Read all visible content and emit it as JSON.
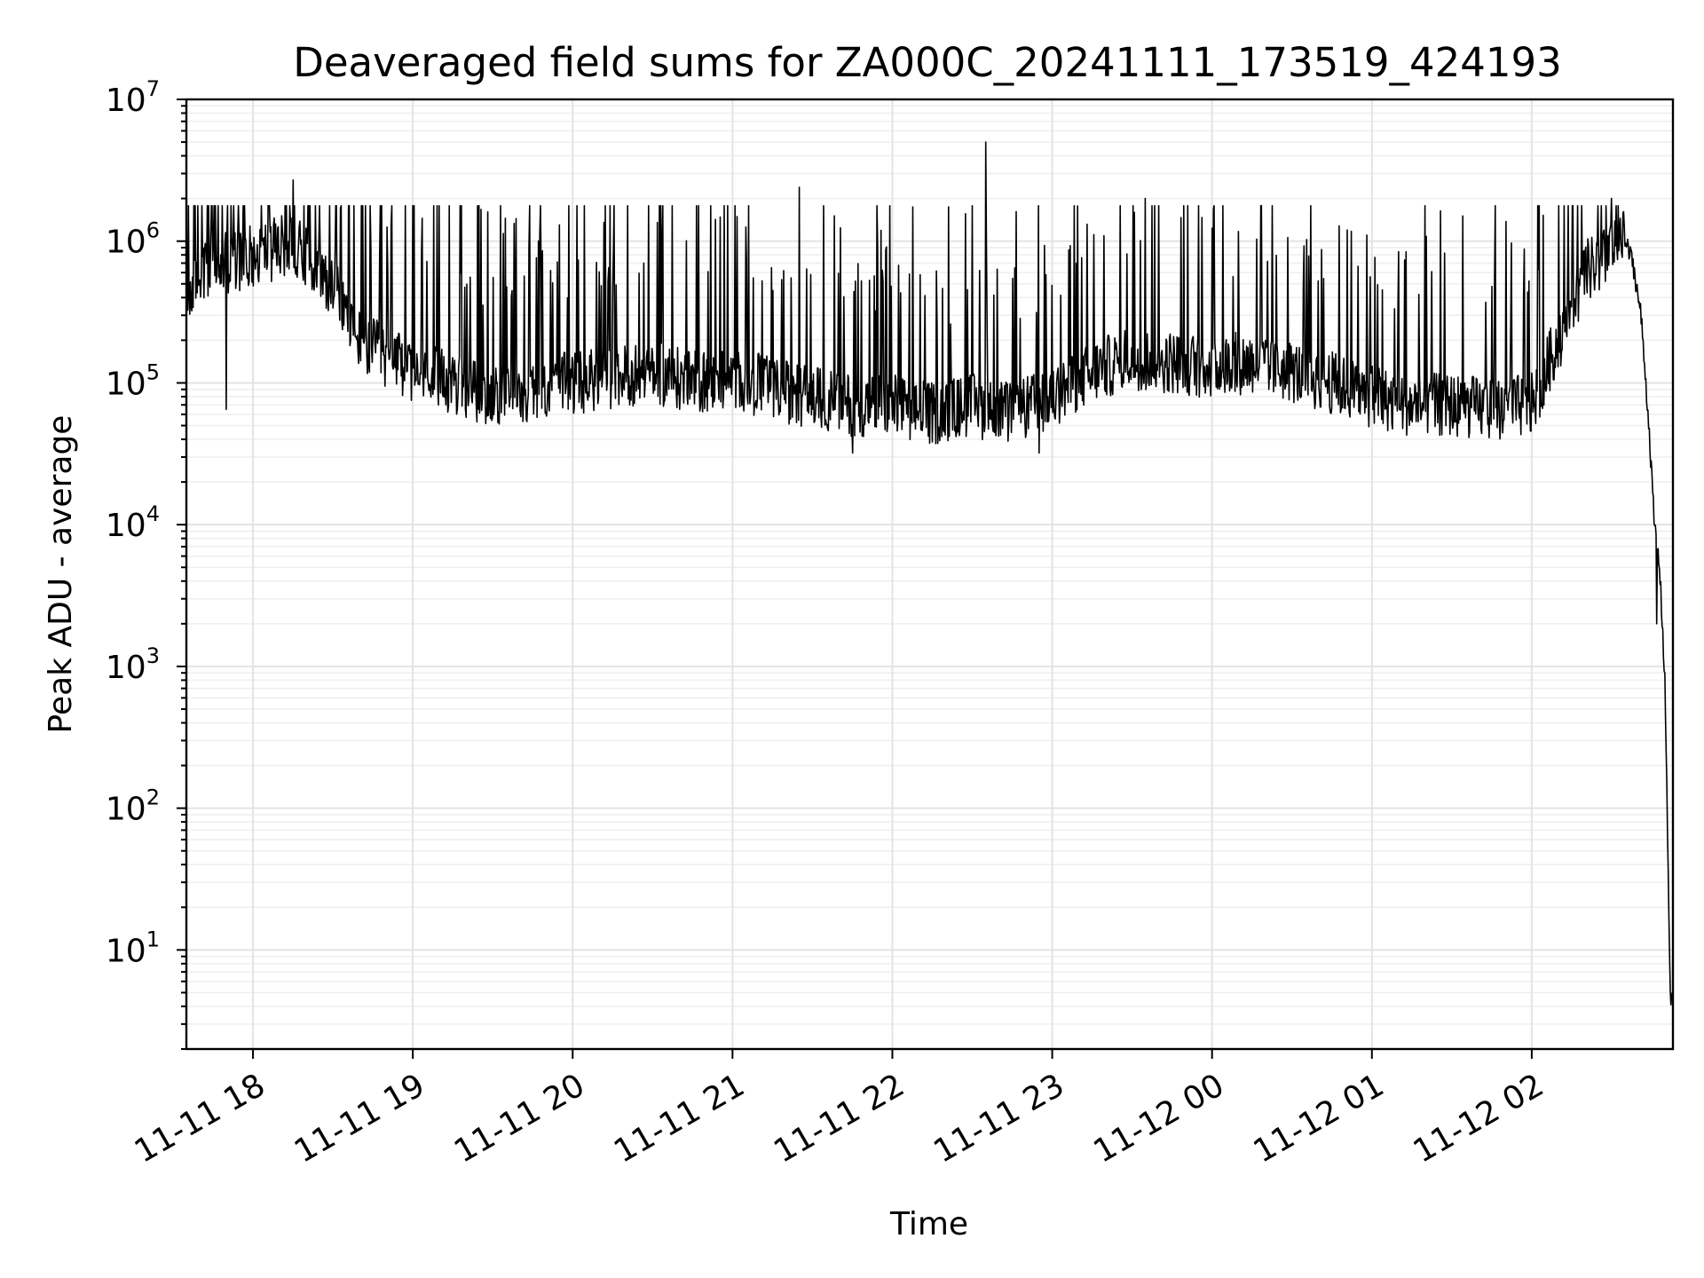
{
  "chart_data": {
    "type": "line",
    "title": "Deaveraged field sums for ZA000C_20241111_173519_424193",
    "xlabel": "Time",
    "ylabel": "Peak ADU - average",
    "yscale": "log",
    "ylim": [
      2,
      10000000
    ],
    "xlim": [
      "2024-11-11 17:35",
      "2024-11-12 02:53"
    ],
    "xtick_labels": [
      "11-11 18",
      "11-11 19",
      "11-11 20",
      "11-11 21",
      "11-11 22",
      "11-11 23",
      "11-12 00",
      "11-12 01",
      "11-12 02"
    ],
    "xtick_times": [
      "2024-11-11 18:00",
      "2024-11-11 19:00",
      "2024-11-11 20:00",
      "2024-11-11 21:00",
      "2024-11-11 22:00",
      "2024-11-11 23:00",
      "2024-11-12 00:00",
      "2024-11-12 01:00",
      "2024-11-12 02:00"
    ],
    "ytick_exponents": [
      1,
      2,
      3,
      4,
      5,
      6,
      7
    ],
    "grid": true,
    "legend": "none",
    "line_color": "#000000",
    "series": [
      {
        "x": [
          "2024-11-11 17:35",
          "2024-11-11 17:40",
          "2024-11-11 17:50",
          "2024-11-11 18:00",
          "2024-11-11 18:10",
          "2024-11-11 18:15",
          "2024-11-11 18:20",
          "2024-11-11 18:30",
          "2024-11-11 18:40",
          "2024-11-11 18:50",
          "2024-11-11 19:00",
          "2024-11-11 19:15",
          "2024-11-11 19:30",
          "2024-11-11 19:45",
          "2024-11-11 20:00",
          "2024-11-11 20:15",
          "2024-11-11 20:30",
          "2024-11-11 20:45",
          "2024-11-11 21:00",
          "2024-11-11 21:15",
          "2024-11-11 21:30",
          "2024-11-11 21:45",
          "2024-11-11 22:00",
          "2024-11-11 22:15",
          "2024-11-11 22:30",
          "2024-11-11 22:35",
          "2024-11-11 22:45",
          "2024-11-11 23:00",
          "2024-11-11 23:15",
          "2024-11-11 23:30",
          "2024-11-11 23:45",
          "2024-11-12 00:00",
          "2024-11-12 00:15",
          "2024-11-12 00:30",
          "2024-11-12 00:45",
          "2024-11-12 01:00",
          "2024-11-12 01:15",
          "2024-11-12 01:30",
          "2024-11-12 01:45",
          "2024-11-12 02:00",
          "2024-11-12 02:10",
          "2024-11-12 02:20",
          "2024-11-12 02:30",
          "2024-11-12 02:35",
          "2024-11-12 02:38",
          "2024-11-12 02:41",
          "2024-11-12 02:44",
          "2024-11-12 02:46",
          "2024-11-12 02:48",
          "2024-11-12 02:50",
          "2024-11-12 02:52",
          "2024-11-12 02:53"
        ],
        "values": [
          400000,
          600000,
          700000,
          800000,
          900000,
          1000000,
          800000,
          500000,
          200000,
          150000,
          120000,
          100000,
          80000,
          90000,
          100000,
          110000,
          120000,
          100000,
          110000,
          90000,
          80000,
          70000,
          70000,
          60000,
          70000,
          65000,
          60000,
          80000,
          120000,
          150000,
          140000,
          130000,
          140000,
          120000,
          100000,
          80000,
          70000,
          70000,
          65000,
          70000,
          200000,
          600000,
          800000,
          1000000,
          700000,
          300000,
          50000,
          10000,
          5000,
          800,
          5,
          4
        ],
        "peaks": [
          {
            "x": "2024-11-11 18:15",
            "value": 2700000
          },
          {
            "x": "2024-11-11 21:25",
            "value": 2400000
          },
          {
            "x": "2024-11-11 22:35",
            "value": 5000000
          },
          {
            "x": "2024-11-11 23:35",
            "value": 2000000
          },
          {
            "x": "2024-11-12 02:30",
            "value": 2000000
          }
        ],
        "troughs": [
          {
            "x": "2024-11-11 17:50",
            "value": 65000
          },
          {
            "x": "2024-11-11 21:45",
            "value": 32000
          },
          {
            "x": "2024-11-11 22:55",
            "value": 32000
          },
          {
            "x": "2024-11-12 02:47",
            "value": 2000
          }
        ]
      }
    ]
  }
}
